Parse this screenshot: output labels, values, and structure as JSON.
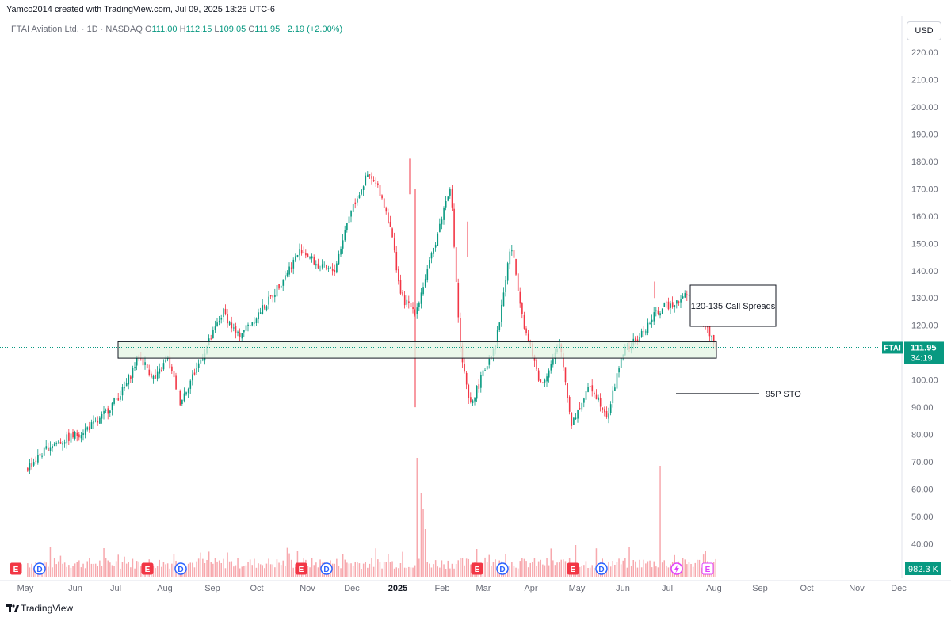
{
  "header": {
    "created_by": "Yamco2014 created with TradingView.com, Jul 09, 2025 13:25 UTC-6",
    "symbol_desc": "FTAI Aviation Ltd. · 1D · NASDAQ",
    "o_label": "O",
    "o_value": "111.00",
    "h_label": "H",
    "h_value": "112.15",
    "l_label": "L",
    "l_value": "109.05",
    "c_label": "C",
    "c_value": "111.95",
    "change": "+2.19 (+2.00%)"
  },
  "currency": "USD",
  "footer": {
    "brand": "TradingView"
  },
  "colors": {
    "up": "#089981",
    "down": "#f23645",
    "zone_fill": "#e3f4e3",
    "volume": "#f7a8ad",
    "price_line": "#089981",
    "event_e": "#f23645",
    "event_d": "#2962ff"
  },
  "chart_data": {
    "type": "candlestick",
    "title": "FTAI Aviation Ltd. · 1D · NASDAQ",
    "ylim": [
      35,
      225
    ],
    "y_ticks": [
      "220.00",
      "210.00",
      "200.00",
      "190.00",
      "180.00",
      "170.00",
      "160.00",
      "150.00",
      "140.00",
      "130.00",
      "120.00",
      "110.00",
      "100.00",
      "90.00",
      "80.00",
      "70.00",
      "60.00",
      "50.00",
      "40.00"
    ],
    "y_tick_values": [
      220,
      210,
      200,
      190,
      180,
      170,
      160,
      150,
      140,
      130,
      120,
      110,
      100,
      90,
      80,
      70,
      60,
      50,
      40
    ],
    "x_ticks": [
      "May",
      "Jun",
      "Jul",
      "Aug",
      "Sep",
      "Oct",
      "Nov",
      "Dec",
      "2025",
      "Feb",
      "Mar",
      "Apr",
      "May",
      "Jun",
      "Jul",
      "Aug",
      "Sep",
      "Oct",
      "Nov",
      "Dec"
    ],
    "price_path": [
      {
        "date": "2024-05-01",
        "price": 68
      },
      {
        "date": "2024-05-15",
        "price": 76
      },
      {
        "date": "2024-06-01",
        "price": 80
      },
      {
        "date": "2024-06-15",
        "price": 85
      },
      {
        "date": "2024-07-01",
        "price": 97
      },
      {
        "date": "2024-07-10",
        "price": 109
      },
      {
        "date": "2024-07-20",
        "price": 100
      },
      {
        "date": "2024-07-28",
        "price": 108
      },
      {
        "date": "2024-08-05",
        "price": 92
      },
      {
        "date": "2024-08-20",
        "price": 110
      },
      {
        "date": "2024-09-01",
        "price": 125
      },
      {
        "date": "2024-09-10",
        "price": 116
      },
      {
        "date": "2024-09-20",
        "price": 122
      },
      {
        "date": "2024-10-01",
        "price": 130
      },
      {
        "date": "2024-10-20",
        "price": 148
      },
      {
        "date": "2024-11-01",
        "price": 141
      },
      {
        "date": "2024-11-10",
        "price": 140
      },
      {
        "date": "2024-11-20",
        "price": 162
      },
      {
        "date": "2024-12-01",
        "price": 175
      },
      {
        "date": "2024-12-08",
        "price": 170
      },
      {
        "date": "2024-12-15",
        "price": 157
      },
      {
        "date": "2024-12-22",
        "price": 130
      },
      {
        "date": "2024-12-31",
        "price": 125
      },
      {
        "date": "2025-01-10",
        "price": 145
      },
      {
        "date": "2025-01-22",
        "price": 172
      },
      {
        "date": "2025-01-28",
        "price": 112
      },
      {
        "date": "2025-02-03",
        "price": 90
      },
      {
        "date": "2025-02-10",
        "price": 100
      },
      {
        "date": "2025-02-20",
        "price": 115
      },
      {
        "date": "2025-03-01",
        "price": 150
      },
      {
        "date": "2025-03-10",
        "price": 118
      },
      {
        "date": "2025-03-20",
        "price": 98
      },
      {
        "date": "2025-04-01",
        "price": 113
      },
      {
        "date": "2025-04-08",
        "price": 84
      },
      {
        "date": "2025-04-20",
        "price": 98
      },
      {
        "date": "2025-05-01",
        "price": 87
      },
      {
        "date": "2025-05-10",
        "price": 110
      },
      {
        "date": "2025-05-20",
        "price": 115
      },
      {
        "date": "2025-06-01",
        "price": 125
      },
      {
        "date": "2025-06-10",
        "price": 128
      },
      {
        "date": "2025-06-25",
        "price": 133
      },
      {
        "date": "2025-07-01",
        "price": 120
      },
      {
        "date": "2025-07-09",
        "price": 111.95
      }
    ],
    "zone": {
      "low": 108,
      "high": 114,
      "from": "2024-07-01",
      "to": "2025-08-01"
    },
    "annotations": [
      {
        "text": "120-135 Call Spreads"
      },
      {
        "text": "95P STO",
        "level": 95
      }
    ],
    "last_price": {
      "symbol": "FTAI",
      "price": "111.95",
      "price_value": 111.95,
      "countdown": "34:19"
    },
    "volume_label": "982.3 K",
    "events": [
      {
        "type": "E",
        "date": "2024-05-01"
      },
      {
        "type": "D",
        "date": "2024-05-15"
      },
      {
        "type": "E",
        "date": "2024-08-01"
      },
      {
        "type": "D",
        "date": "2024-08-15"
      },
      {
        "type": "E",
        "date": "2024-11-01"
      },
      {
        "type": "D",
        "date": "2024-11-15"
      },
      {
        "type": "E",
        "date": "2025-02-25"
      },
      {
        "type": "D",
        "date": "2025-03-10"
      },
      {
        "type": "E",
        "date": "2025-05-01"
      },
      {
        "type": "D",
        "date": "2025-05-15"
      },
      {
        "type": "E",
        "date": "2025-08-01"
      }
    ]
  }
}
